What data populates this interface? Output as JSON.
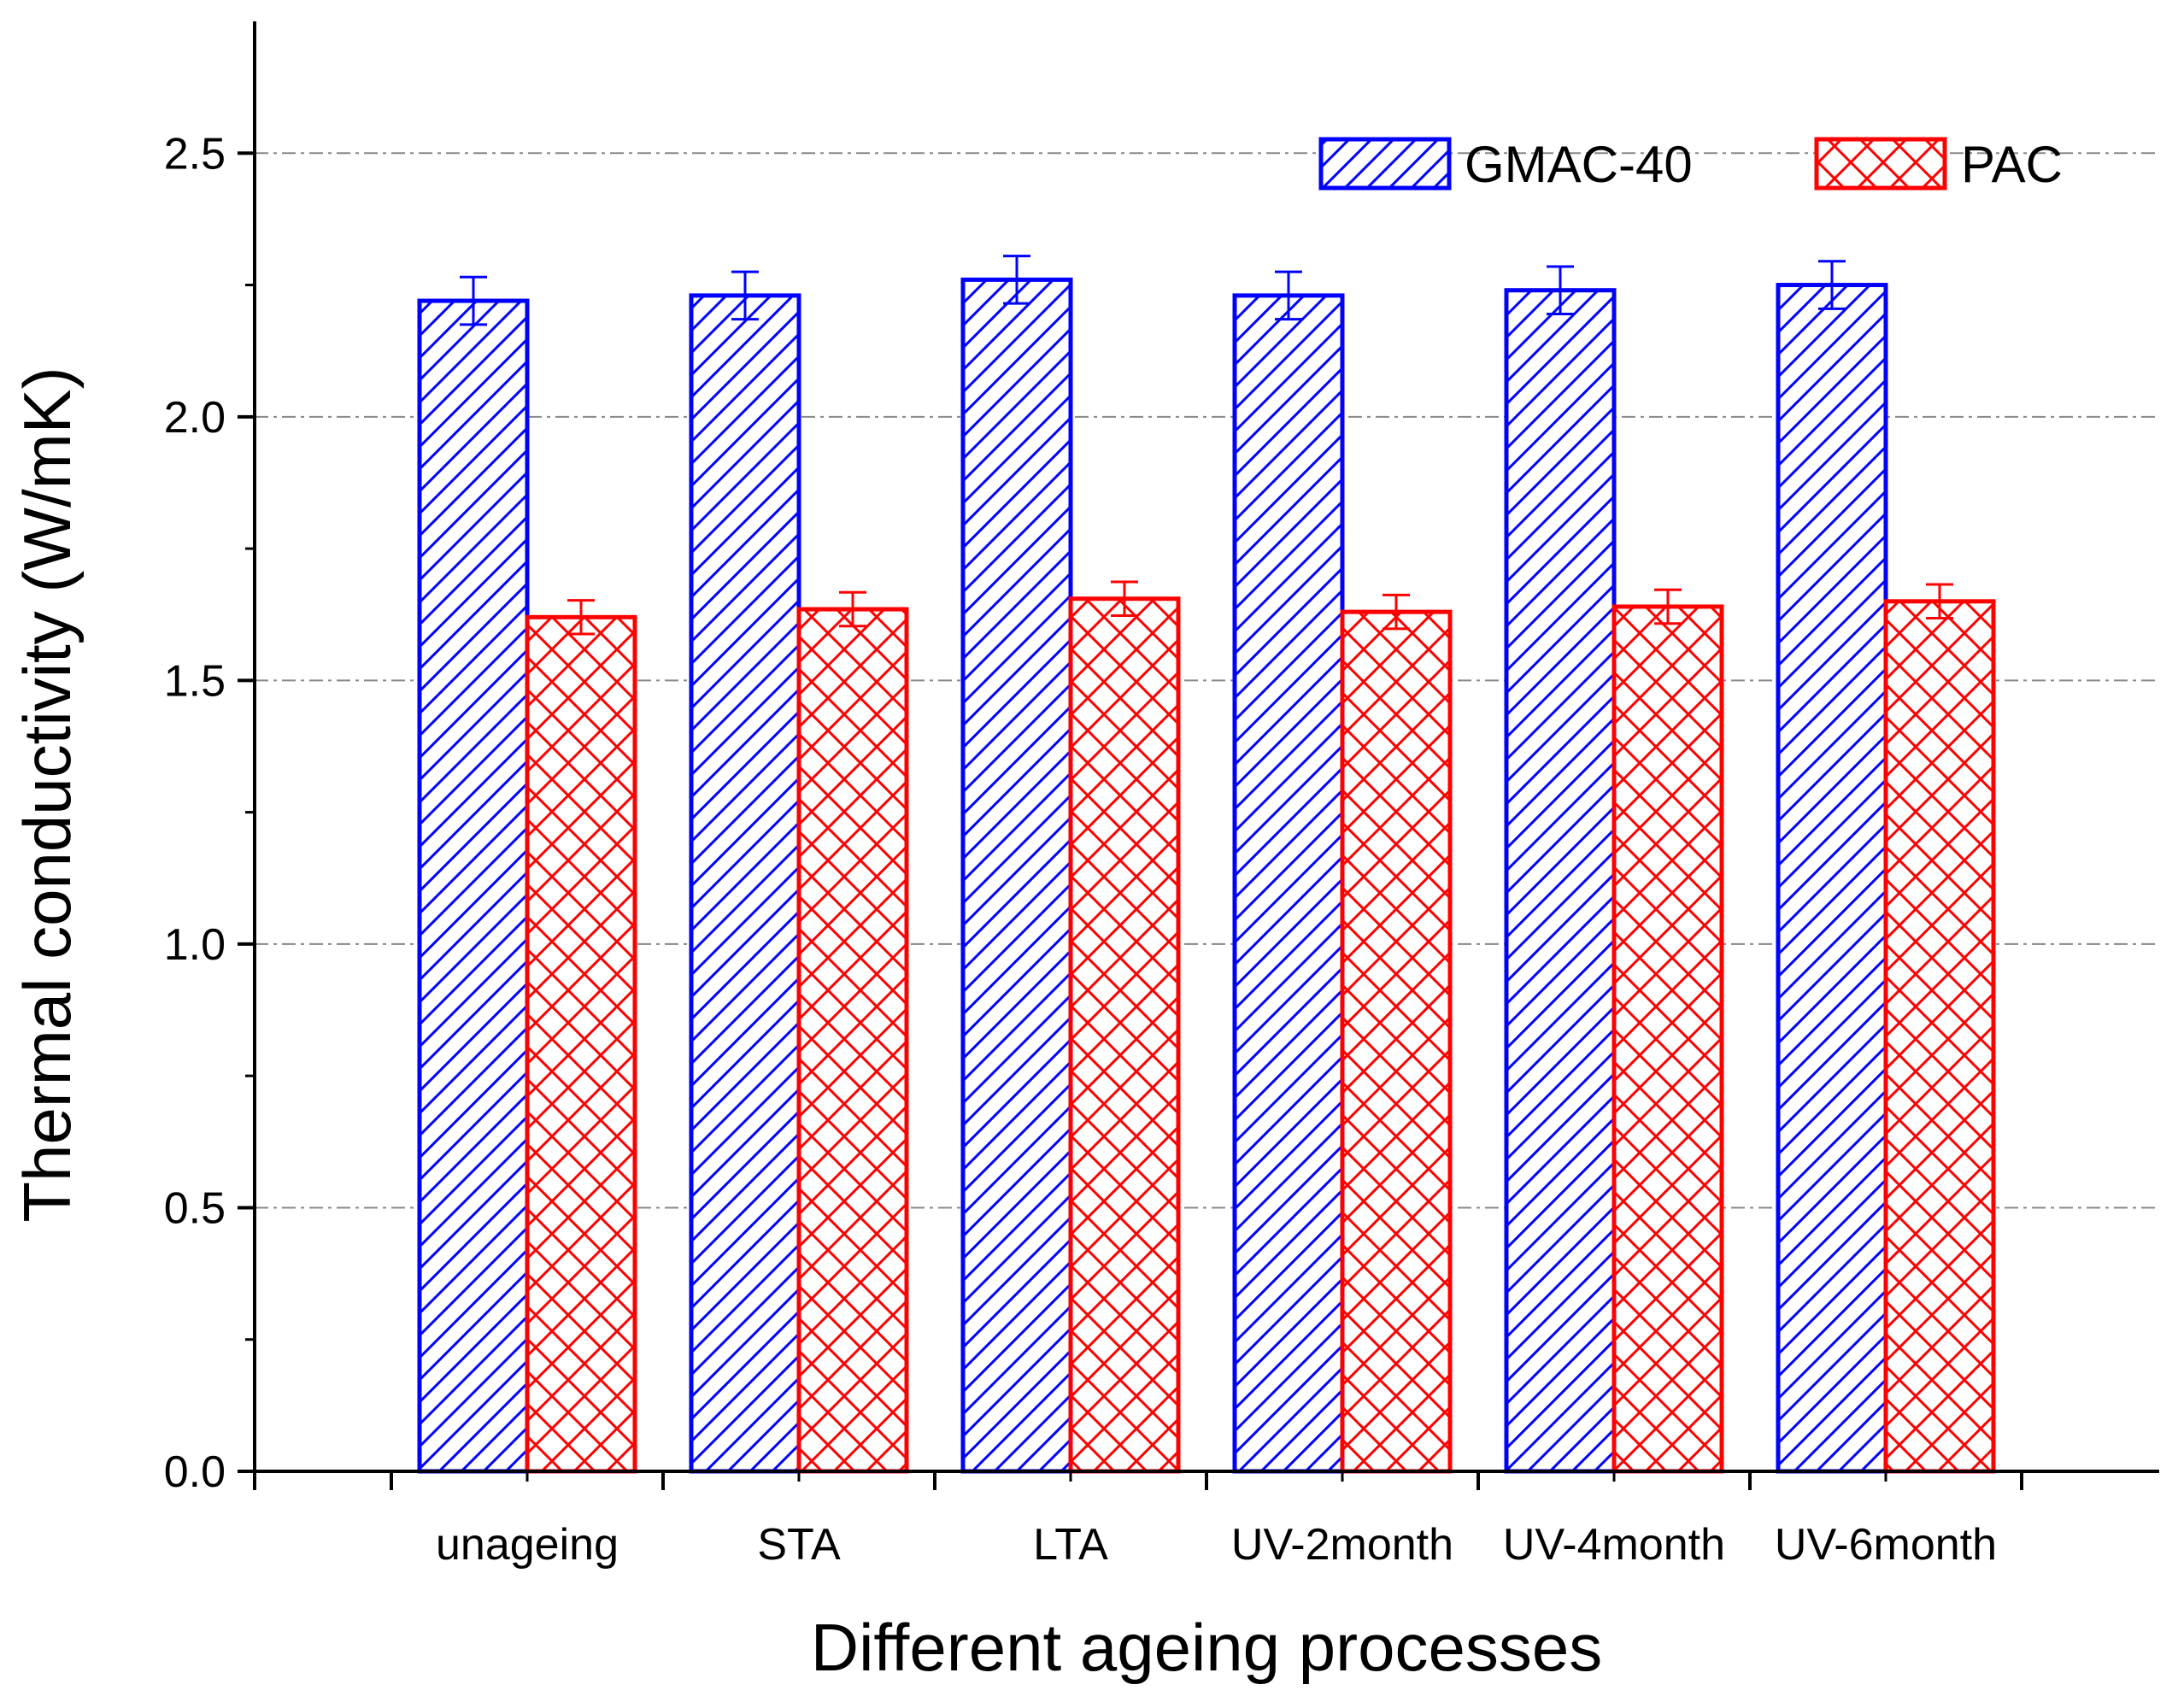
{
  "chart_data": {
    "type": "bar",
    "title": "",
    "xlabel": "Different ageing processes",
    "ylabel": "Thermal conductivity (W/mK)",
    "categories": [
      "unageing",
      "STA",
      "LTA",
      "UV-2month",
      "UV-4month",
      "UV-6month"
    ],
    "ylim": [
      0,
      2.75
    ],
    "yticks": [
      0.0,
      0.5,
      1.0,
      1.5,
      2.0,
      2.5
    ],
    "ytick_labels": [
      "0.0",
      "0.5",
      "1.0",
      "1.5",
      "2.0",
      "2.5"
    ],
    "grid": "horizontal dash-dot at major ticks",
    "legend_position": "top-right",
    "series": [
      {
        "name": "GMAC-40",
        "color": "#0000ff",
        "pattern": "diagonal-hatch",
        "values": [
          2.22,
          2.23,
          2.26,
          2.23,
          2.24,
          2.25
        ],
        "errors": [
          0.045,
          0.045,
          0.045,
          0.045,
          0.045,
          0.045
        ]
      },
      {
        "name": "PAC",
        "color": "#ff0000",
        "pattern": "cross-hatch",
        "values": [
          1.62,
          1.635,
          1.655,
          1.63,
          1.64,
          1.65
        ],
        "errors": [
          0.032,
          0.032,
          0.032,
          0.032,
          0.032,
          0.032
        ]
      }
    ]
  }
}
